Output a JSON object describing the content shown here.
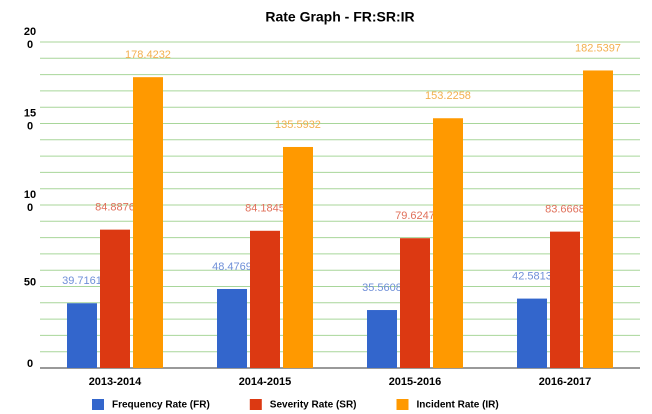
{
  "chart_data": {
    "type": "bar",
    "title": "Rate Graph - FR:SR:IR",
    "categories": [
      "2013-2014",
      "2014-2015",
      "2015-2016",
      "2016-2017"
    ],
    "series": [
      {
        "name": "Frequency Rate (FR)",
        "color": "#3366cc",
        "label_color": "#6f8fd8",
        "values": [
          39.7161,
          48.4769,
          35.5608,
          42.5813
        ]
      },
      {
        "name": "Severity Rate (SR)",
        "color": "#dc3912",
        "label_color": "#e0705a",
        "values": [
          84.8876,
          84.1845,
          79.6247,
          83.6668
        ]
      },
      {
        "name": "Incident Rate (IR)",
        "color": "#ff9900",
        "label_color": "#f3b04f",
        "values": [
          178.4232,
          135.5932,
          153.2258,
          182.5397
        ]
      }
    ],
    "ylim": [
      0,
      200
    ],
    "yticks": [
      0,
      50,
      100,
      150,
      200
    ],
    "minor_yticks": [
      10,
      20,
      30,
      40,
      60,
      70,
      80,
      90,
      110,
      120,
      130,
      140,
      160,
      170,
      180,
      190
    ],
    "grid": true,
    "grid_color": "#a8d69a",
    "legend": "bottom"
  }
}
